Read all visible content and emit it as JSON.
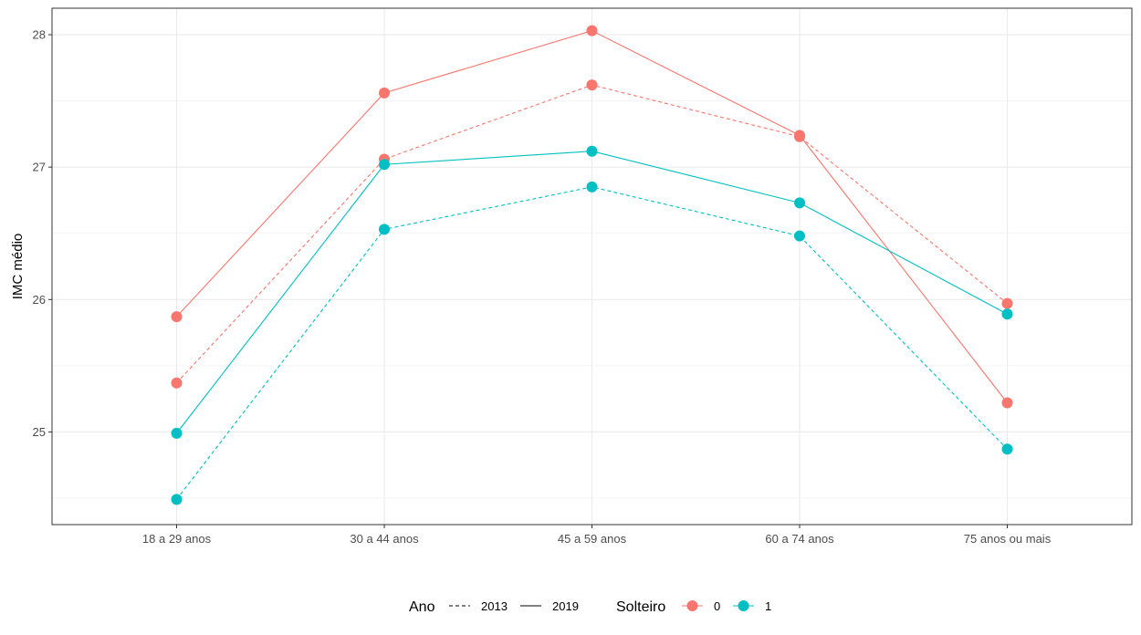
{
  "chart_data": {
    "type": "line",
    "xlabel": "",
    "ylabel": "IMC médio",
    "categories": [
      "18 a 29 anos",
      "30 a 44 anos",
      "45 a 59 anos",
      "60 a 74 anos",
      "75 anos ou mais"
    ],
    "ylim": [
      24.3,
      28.2
    ],
    "yticks": [
      25,
      26,
      27,
      28
    ],
    "grid": true,
    "series": [
      {
        "solteiro": "0",
        "ano": "2019",
        "values": [
          25.87,
          27.56,
          28.03,
          27.24,
          25.22
        ]
      },
      {
        "solteiro": "0",
        "ano": "2013",
        "values": [
          25.37,
          27.06,
          27.62,
          27.23,
          25.97
        ]
      },
      {
        "solteiro": "1",
        "ano": "2019",
        "values": [
          24.99,
          27.02,
          27.12,
          26.73,
          25.89
        ]
      },
      {
        "solteiro": "1",
        "ano": "2013",
        "values": [
          24.49,
          26.53,
          26.85,
          26.48,
          24.87
        ]
      }
    ],
    "colors": {
      "0": "#F8766D",
      "1": "#00BFC4"
    },
    "legend": {
      "position": "bottom",
      "ano_title": "Ano",
      "ano_items": [
        {
          "label": "2013",
          "linetype": "dashed"
        },
        {
          "label": "2019",
          "linetype": "solid"
        }
      ],
      "solteiro_title": "Solteiro",
      "solteiro_items": [
        {
          "label": "0"
        },
        {
          "label": "1"
        }
      ]
    }
  }
}
